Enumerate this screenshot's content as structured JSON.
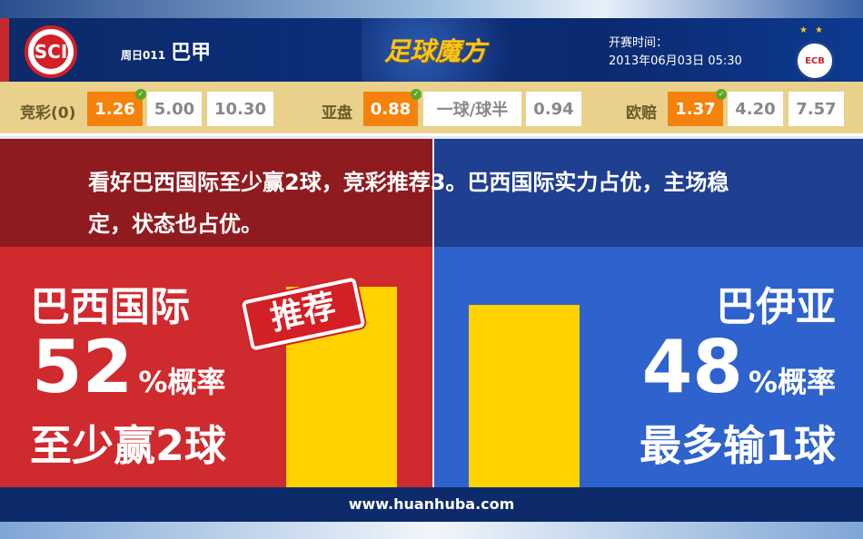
{
  "header": {
    "weekday_code": "周日011",
    "league": "巴甲",
    "brand": "足球魔方",
    "kickoff_label": "开赛时间：",
    "kickoff_time": "2013年06月03日 05:30",
    "home_logo_text": "SCI",
    "away_logo_text": "ECB"
  },
  "odds": {
    "jingcai": {
      "label": "竞彩(0)",
      "values": [
        "1.26",
        "5.00",
        "10.30"
      ],
      "selected": 0
    },
    "yapan": {
      "label": "亚盘",
      "values": [
        "0.88",
        "一球/球半",
        "0.94"
      ],
      "selected": 0
    },
    "oupei": {
      "label": "欧赔",
      "values": [
        "1.37",
        "4.20",
        "7.57"
      ],
      "selected": 0
    }
  },
  "comment": "看好巴西国际至少赢2球，竞彩推荐3。巴西国际实力占优，主场稳定，状态也占优。",
  "home": {
    "name": "巴西国际",
    "percent": "52",
    "percent_suffix": "%概率",
    "outcome": "至少赢2球",
    "stamp": "推荐"
  },
  "away": {
    "name": "巴伊亚",
    "percent": "48",
    "percent_suffix": "%概率",
    "outcome": "最多输1球"
  },
  "footer": {
    "url": "www.huanhuba.com"
  },
  "colors": {
    "home": "#cf2a2e",
    "away": "#2e62cc",
    "bar": "#ffd200",
    "highlight": "#f5820c"
  }
}
